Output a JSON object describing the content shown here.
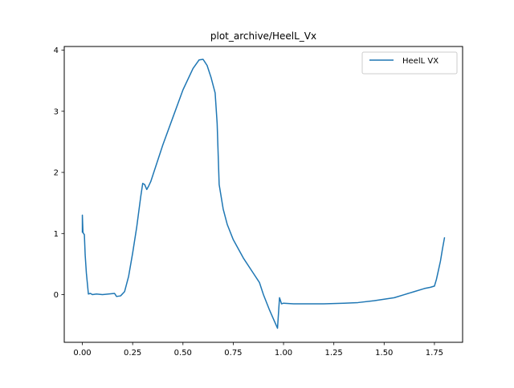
{
  "chart_data": {
    "type": "line",
    "title": "plot_archive/HeelL_Vx",
    "xlabel": "",
    "ylabel": "",
    "xlim": [
      -0.09,
      1.89
    ],
    "ylim": [
      -0.78,
      4.06
    ],
    "xticks": [
      0.0,
      0.25,
      0.5,
      0.75,
      1.0,
      1.25,
      1.5,
      1.75
    ],
    "xtick_labels": [
      "0.00",
      "0.25",
      "0.50",
      "0.75",
      "1.00",
      "1.25",
      "1.50",
      "1.75"
    ],
    "yticks": [
      0,
      1,
      2,
      3,
      4
    ],
    "ytick_labels": [
      "0",
      "1",
      "2",
      "3",
      "4"
    ],
    "grid": false,
    "legend_position": "top-right",
    "series": [
      {
        "name": "HeelL VX",
        "color": "#1f77b4",
        "x": [
          0.0,
          0.0,
          0.003,
          0.006,
          0.01,
          0.014,
          0.02,
          0.03,
          0.04,
          0.05,
          0.07,
          0.1,
          0.13,
          0.16,
          0.17,
          0.19,
          0.21,
          0.23,
          0.25,
          0.27,
          0.29,
          0.3,
          0.31,
          0.32,
          0.33,
          0.34,
          0.35,
          0.37,
          0.4,
          0.45,
          0.5,
          0.55,
          0.58,
          0.6,
          0.62,
          0.64,
          0.66,
          0.67,
          0.68,
          0.7,
          0.72,
          0.75,
          0.8,
          0.85,
          0.88,
          0.9,
          0.93,
          0.95,
          0.97,
          0.98,
          0.99,
          1.0,
          1.05,
          1.1,
          1.2,
          1.3,
          1.37,
          1.45,
          1.55,
          1.6,
          1.65,
          1.7,
          1.73,
          1.75,
          1.76,
          1.77,
          1.78,
          1.79,
          1.8
        ],
        "values": [
          1.02,
          1.3,
          1.02,
          1.0,
          0.98,
          0.65,
          0.35,
          0.01,
          0.02,
          0.0,
          0.01,
          0.0,
          0.01,
          0.02,
          -0.03,
          -0.02,
          0.05,
          0.3,
          0.68,
          1.1,
          1.6,
          1.82,
          1.8,
          1.72,
          1.78,
          1.85,
          1.95,
          2.15,
          2.45,
          2.9,
          3.35,
          3.7,
          3.84,
          3.85,
          3.75,
          3.55,
          3.3,
          2.8,
          1.8,
          1.4,
          1.15,
          0.9,
          0.6,
          0.35,
          0.2,
          0.0,
          -0.25,
          -0.4,
          -0.55,
          -0.05,
          -0.15,
          -0.14,
          -0.15,
          -0.15,
          -0.15,
          -0.14,
          -0.13,
          -0.1,
          -0.05,
          0.0,
          0.05,
          0.1,
          0.12,
          0.14,
          0.25,
          0.4,
          0.55,
          0.75,
          0.93
        ]
      }
    ]
  }
}
